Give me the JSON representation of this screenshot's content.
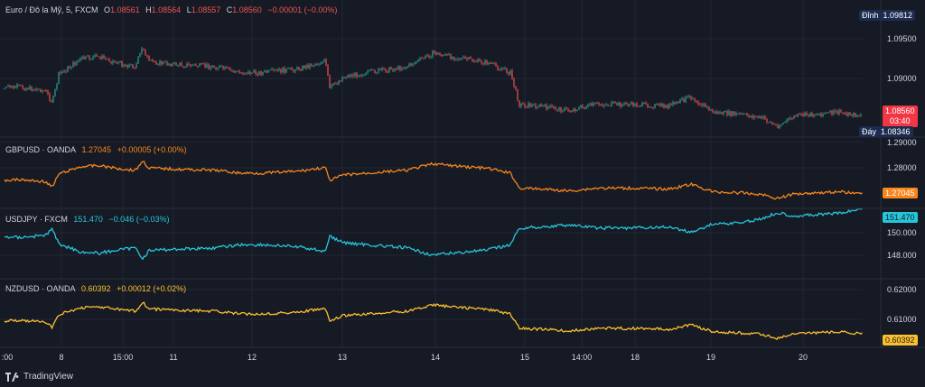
{
  "panes": {
    "eurusd": {
      "symbol": "Euro / Đô la Mỹ, 5, FXCM",
      "o_label": "O",
      "o": "1.08561",
      "h_label": "H",
      "h": "1.08564",
      "l_label": "L",
      "l": "1.08557",
      "c_label": "C",
      "c": "1.08560",
      "change": "−0.00001 (−0.00%)",
      "high_tag_label": "Đỉnh",
      "high_tag_value": "1.09812",
      "low_tag_label": "Đáy",
      "low_tag_value": "1.08346",
      "last_price": "1.08560",
      "countdown": "03:40",
      "ticks": [
        "1.09500",
        "1.09000"
      ],
      "tag_colors": {
        "marker": "#1c2b4f",
        "last": "#f23645"
      }
    },
    "gbpusd": {
      "symbol": "GBPUSD · OANDA",
      "value": "1.27045",
      "change": "+0.00005 (+0.00%)",
      "ticks": [
        "1.29000",
        "1.28000"
      ],
      "last_price": "1.27045",
      "color": "#f7861c"
    },
    "usdjpy": {
      "symbol": "USDJPY · FXCM",
      "value": "151.470",
      "change": "−0.046 (−0.03%)",
      "ticks": [
        "150.000",
        "148.000"
      ],
      "last_price": "151.470",
      "color": "#26c6da"
    },
    "nzdusd": {
      "symbol": "NZDUSD · OANDA",
      "value": "0.60392",
      "change": "+0.00012 (+0.02%)",
      "ticks": [
        "0.62000",
        "0.61000"
      ],
      "last_price": "0.60392",
      "color": "#fbc02d"
    }
  },
  "time_axis": [
    ":00",
    "8",
    "15:00",
    "11",
    "12",
    "13",
    "14",
    "15",
    "14:00",
    "18",
    "19",
    "20"
  ],
  "brand": "TradingView",
  "colors": {
    "background": "#161a25",
    "candle_up": "#26a69a",
    "candle_down": "#ef5350"
  }
}
